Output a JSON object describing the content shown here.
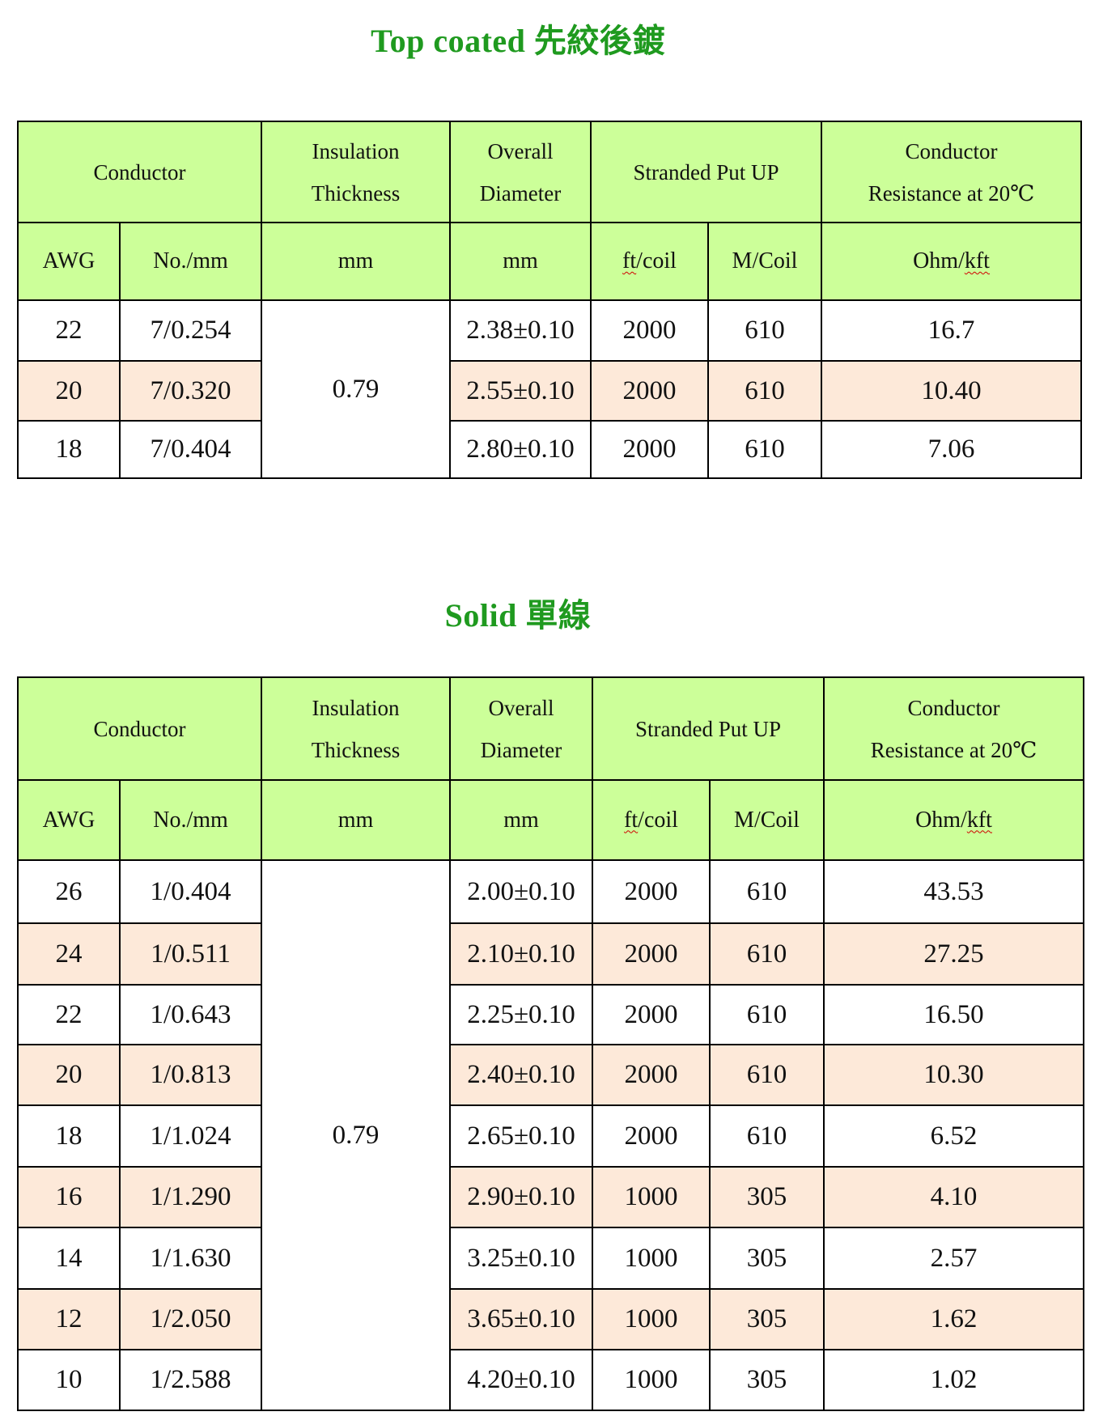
{
  "colors": {
    "title": "#1f9a1f",
    "header_bg": "#ccff99",
    "alt_row_bg": "#fde9d9"
  },
  "headers": {
    "conductor": "Conductor",
    "insulation_1": "Insulation",
    "insulation_2": "Thickness",
    "overall_1": "Overall",
    "overall_2": "Diameter",
    "stranded": "Stranded Put UP",
    "resistance_1": "Conductor",
    "resistance_2": "Resistance at 20℃",
    "awg": "AWG",
    "no_mm": "No./mm",
    "mm1": "mm",
    "mm2": "mm",
    "ft_prefix": "ft",
    "ft_suffix": "/coil",
    "m_coil": "M/Coil",
    "ohm_prefix": "Ohm/",
    "ohm_suffix": "kft"
  },
  "tables": [
    {
      "title": "Top coated  先絞後鍍",
      "insulation": "0.79",
      "rows": [
        [
          "22",
          "7/0.254",
          "2.38±0.10",
          "2000",
          "610",
          "16.7"
        ],
        [
          "20",
          "7/0.320",
          "2.55±0.10",
          "2000",
          "610",
          "10.40"
        ],
        [
          "18",
          "7/0.404",
          "2.80±0.10",
          "2000",
          "610",
          "7.06"
        ]
      ]
    },
    {
      "title": "Solid  單線",
      "insulation": "0.79",
      "rows": [
        [
          "26",
          "1/0.404",
          "2.00±0.10",
          "2000",
          "610",
          "43.53"
        ],
        [
          "24",
          "1/0.511",
          "2.10±0.10",
          "2000",
          "610",
          "27.25"
        ],
        [
          "22",
          "1/0.643",
          "2.25±0.10",
          "2000",
          "610",
          "16.50"
        ],
        [
          "20",
          "1/0.813",
          "2.40±0.10",
          "2000",
          "610",
          "10.30"
        ],
        [
          "18",
          "1/1.024",
          "2.65±0.10",
          "2000",
          "610",
          "6.52"
        ],
        [
          "16",
          "1/1.290",
          "2.90±0.10",
          "1000",
          "305",
          "4.10"
        ],
        [
          "14",
          "1/1.630",
          "3.25±0.10",
          "1000",
          "305",
          "2.57"
        ],
        [
          "12",
          "1/2.050",
          "3.65±0.10",
          "1000",
          "305",
          "1.62"
        ],
        [
          "10",
          "1/2.588",
          "4.20±0.10",
          "1000",
          "305",
          "1.02"
        ]
      ]
    }
  ]
}
